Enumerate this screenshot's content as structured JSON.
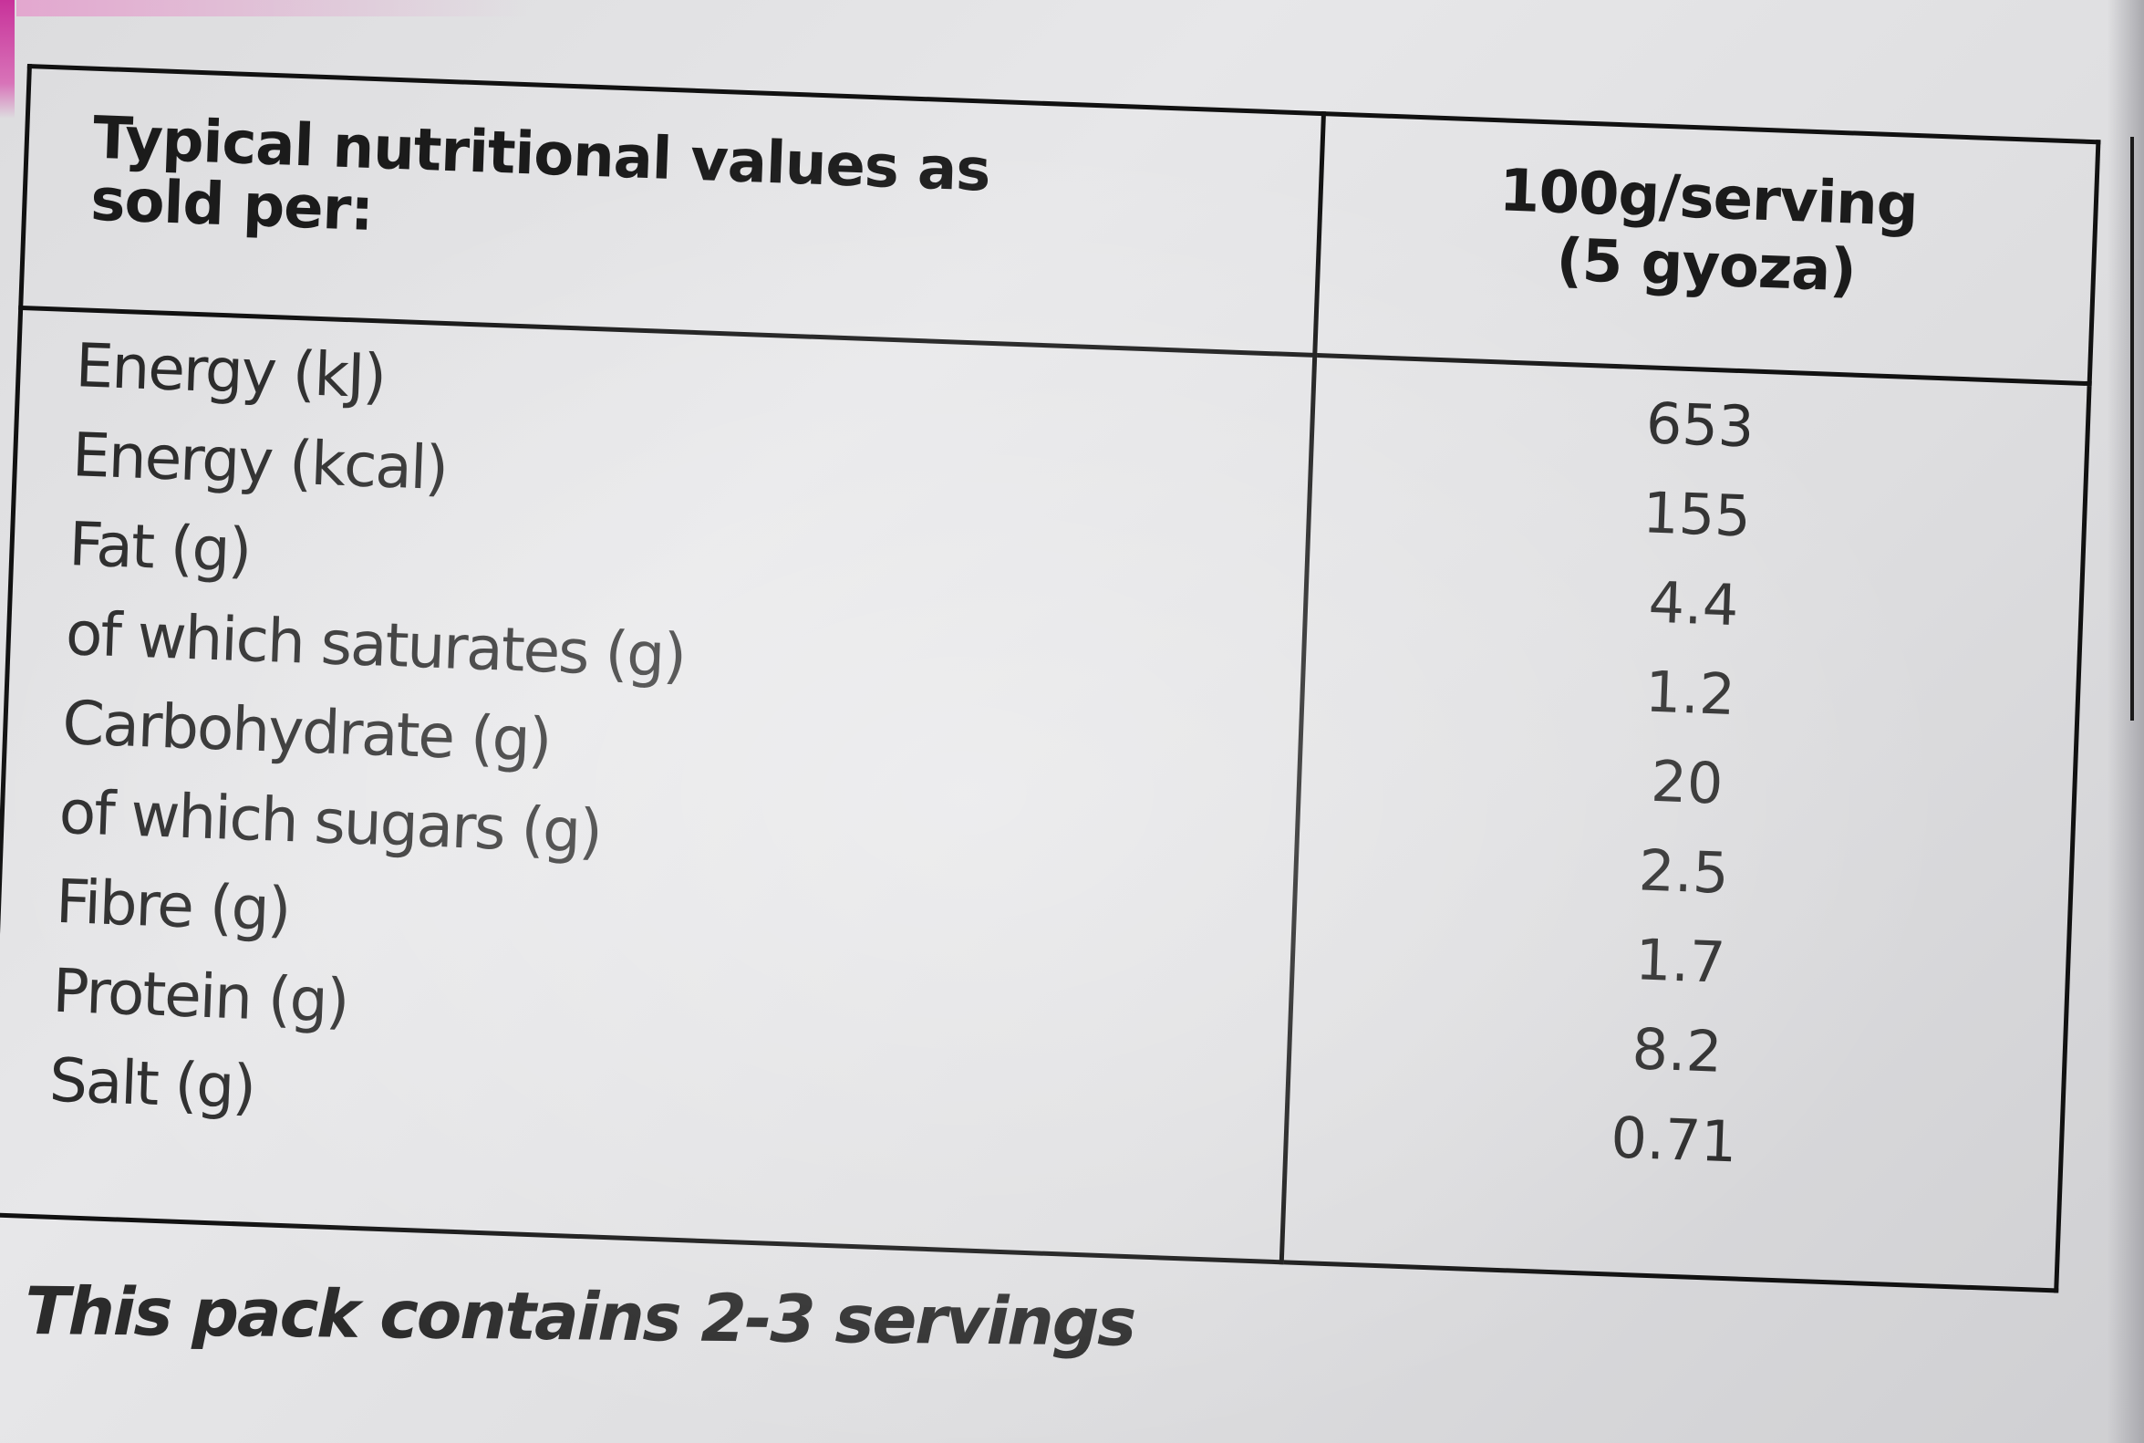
{
  "header": {
    "label_line1": "Typical nutritional values as",
    "label_line2": "sold per:",
    "value_line1": "100g/serving",
    "value_line2": "(5 gyoza)"
  },
  "rows": [
    {
      "label": "Energy (kJ)",
      "value": "653"
    },
    {
      "label": "Energy (kcal)",
      "value": "155"
    },
    {
      "label": "Fat (g)",
      "value": "4.4"
    },
    {
      "label": "of which saturates (g)",
      "value": "1.2"
    },
    {
      "label": "Carbohydrate (g)",
      "value": "20"
    },
    {
      "label": "of which sugars (g)",
      "value": "2.5"
    },
    {
      "label": "Fibre (g)",
      "value": "1.7"
    },
    {
      "label": "Protein (g)",
      "value": "8.2"
    },
    {
      "label": "Salt (g)",
      "value": "0.71"
    }
  ],
  "footer": {
    "note": "This pack contains 2-3 servings"
  },
  "colors": {
    "ink": "#1b1b1b",
    "background": "#e2e2e4",
    "pink_accent": "#c8329a"
  }
}
